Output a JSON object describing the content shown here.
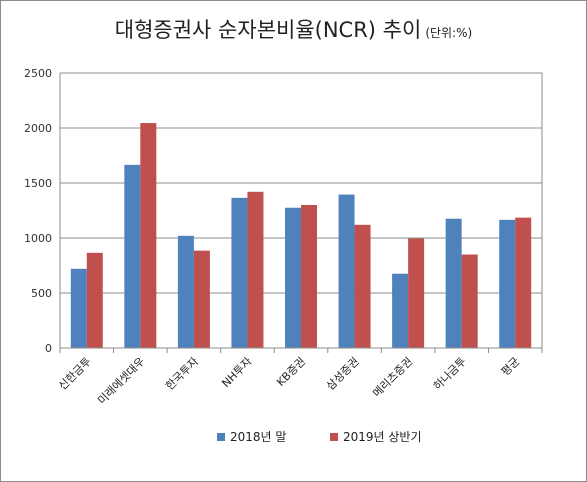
{
  "chart_data": {
    "type": "bar",
    "title": "대형증권사 순자본비율(NCR)  추이",
    "unit_note": "(단위:%)",
    "categories": [
      "신한금투",
      "미래에셋대우",
      "한국투자",
      "NH투자",
      "KB증권",
      "삼성증권",
      "메리츠증권",
      "하나금투",
      "평균"
    ],
    "series": [
      {
        "name": "2018년 말",
        "color": "#4f81bd",
        "values": [
          720,
          1665,
          1020,
          1365,
          1275,
          1395,
          675,
          1175,
          1165
        ]
      },
      {
        "name": "2019년 상반기",
        "color": "#c0504d",
        "values": [
          865,
          2045,
          885,
          1420,
          1300,
          1120,
          995,
          850,
          1185
        ]
      }
    ],
    "yticks": [
      0,
      500,
      1000,
      1500,
      2000,
      2500
    ],
    "ylim": [
      0,
      2500
    ],
    "grid": true,
    "legend": "bottom-center"
  }
}
